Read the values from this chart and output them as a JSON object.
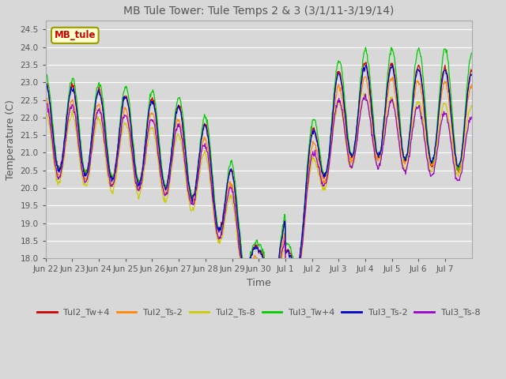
{
  "title": "MB Tule Tower: Tule Temps 2 & 3 (3/1/11-3/19/14)",
  "xlabel": "Time",
  "ylabel": "Temperature (C)",
  "ylim": [
    18.0,
    24.75
  ],
  "yticks": [
    18.0,
    18.5,
    19.0,
    19.5,
    20.0,
    20.5,
    21.0,
    21.5,
    22.0,
    22.5,
    23.0,
    23.5,
    24.0,
    24.5
  ],
  "bg_color": "#d8d8d8",
  "plot_bg": "#d8d8d8",
  "legend_label": "MB_tule",
  "series_colors": {
    "Tul2_Tw+4": "#cc0000",
    "Tul2_Ts-2": "#ff8800",
    "Tul2_Ts-8": "#cccc00",
    "Tul3_Tw+4": "#00cc00",
    "Tul3_Ts-2": "#0000cc",
    "Tul3_Ts-8": "#9900cc"
  },
  "xtick_labels": [
    "Jun 22",
    "Jun 23",
    "Jun 24",
    "Jun 25",
    "Jun 26",
    "Jun 27",
    "Jun 28",
    "Jun 29",
    "Jun 30",
    "Jul 1",
    "Jul 2",
    "Jul 3",
    "Jul 4",
    "Jul 5",
    "Jul 6",
    "Jul 7"
  ],
  "figsize": [
    6.4,
    4.8
  ],
  "dpi": 100
}
